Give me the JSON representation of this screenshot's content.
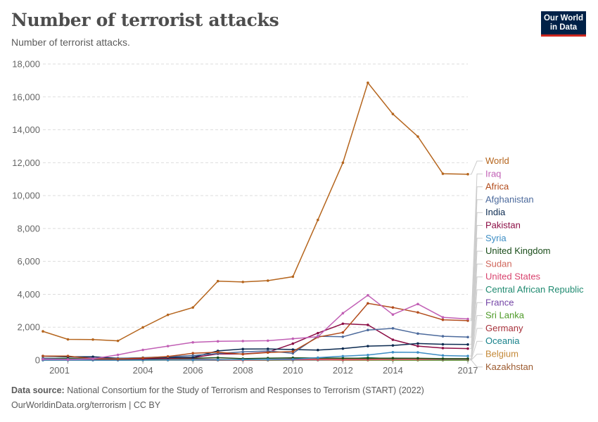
{
  "header": {
    "title": "Number of terrorist attacks",
    "subtitle": "Number of terrorist attacks."
  },
  "logo": {
    "line1": "Our World",
    "line2": "in Data"
  },
  "footer": {
    "source_label": "Data source:",
    "source_text": "National Consortium for the Study of Terrorism and Responses to Terrorism (START) (2022)",
    "link_text": "OurWorldinData.org/terrorism | CC BY"
  },
  "chart_data": {
    "type": "line",
    "title": "Number of terrorist attacks",
    "xlabel": "",
    "ylabel": "",
    "xlim": [
      2001,
      2017
    ],
    "ylim": [
      0,
      18000
    ],
    "yticks": [
      0,
      2000,
      4000,
      6000,
      8000,
      10000,
      12000,
      14000,
      16000,
      18000
    ],
    "ytick_labels": [
      "0",
      "2,000",
      "4,000",
      "6,000",
      "8,000",
      "10,000",
      "12,000",
      "14,000",
      "16,000",
      "18,000"
    ],
    "xticks": [
      2001,
      2004,
      2006,
      2008,
      2010,
      2012,
      2014,
      2017
    ],
    "xtick_labels": [
      "2001",
      "2004",
      "2006",
      "2008",
      "2010",
      "2012",
      "2014",
      "2017"
    ],
    "grid": "horizontal dashed",
    "legend": "right, labels at line ends",
    "x": [
      2000,
      2001,
      2002,
      2003,
      2004,
      2005,
      2006,
      2007,
      2008,
      2009,
      2010,
      2011,
      2012,
      2013,
      2014,
      2015,
      2016,
      2017
    ],
    "series": [
      {
        "name": "World",
        "color": "#b5651d",
        "values": [
          1750,
          1260,
          1250,
          1170,
          1990,
          2750,
          3200,
          4800,
          4750,
          4830,
          5070,
          8520,
          12000,
          16860,
          14960,
          13590,
          11330,
          11300
        ]
      },
      {
        "name": "Iraq",
        "color": "#c15fb5",
        "values": [
          50,
          30,
          80,
          320,
          620,
          850,
          1080,
          1140,
          1160,
          1180,
          1300,
          1420,
          2850,
          3940,
          2770,
          3410,
          2600,
          2500
        ]
      },
      {
        "name": "Africa",
        "color": "#b24b1b",
        "values": [
          250,
          250,
          80,
          70,
          130,
          220,
          420,
          480,
          360,
          460,
          520,
          1400,
          1680,
          3450,
          3200,
          2900,
          2450,
          2400
        ]
      },
      {
        "name": "Afghanistan",
        "color": "#4c6a9c",
        "values": [
          100,
          50,
          70,
          100,
          150,
          200,
          280,
          400,
          500,
          560,
          410,
          1450,
          1420,
          1830,
          1930,
          1610,
          1450,
          1400
        ]
      },
      {
        "name": "India",
        "color": "#0b2a50",
        "values": [
          250,
          200,
          200,
          110,
          140,
          160,
          170,
          560,
          670,
          680,
          640,
          610,
          700,
          850,
          890,
          1010,
          960,
          950
        ]
      },
      {
        "name": "Pakistan",
        "color": "#8c0e45",
        "values": [
          60,
          50,
          60,
          60,
          80,
          120,
          150,
          380,
          370,
          480,
          1000,
          1640,
          2210,
          2140,
          1240,
          850,
          730,
          700
        ]
      },
      {
        "name": "Syria",
        "color": "#3c8dc4",
        "values": [
          0,
          0,
          0,
          0,
          10,
          10,
          10,
          20,
          30,
          40,
          50,
          150,
          240,
          310,
          480,
          470,
          280,
          250
        ]
      },
      {
        "name": "United Kingdom",
        "color": "#1a4d1a",
        "values": [
          110,
          80,
          60,
          50,
          60,
          100,
          110,
          150,
          90,
          120,
          140,
          130,
          120,
          110,
          120,
          110,
          90,
          90
        ]
      },
      {
        "name": "Sudan",
        "color": "#d0665b",
        "values": [
          30,
          20,
          40,
          30,
          60,
          60,
          40,
          40,
          30,
          40,
          80,
          80,
          60,
          70,
          30,
          40,
          50,
          50
        ]
      },
      {
        "name": "United States",
        "color": "#d9446f",
        "values": [
          30,
          40,
          30,
          10,
          20,
          20,
          20,
          20,
          10,
          20,
          20,
          20,
          20,
          30,
          40,
          70,
          60,
          60
        ]
      },
      {
        "name": "Central African Republic",
        "color": "#1f8a70",
        "values": [
          0,
          0,
          0,
          0,
          0,
          10,
          10,
          20,
          20,
          30,
          10,
          10,
          60,
          150,
          80,
          50,
          30,
          30
        ]
      },
      {
        "name": "France",
        "color": "#7445a6",
        "values": [
          240,
          200,
          120,
          90,
          90,
          80,
          60,
          40,
          10,
          20,
          50,
          50,
          60,
          40,
          40,
          40,
          40,
          40
        ]
      },
      {
        "name": "Sri Lanka",
        "color": "#4e9a28",
        "values": [
          100,
          110,
          80,
          30,
          20,
          50,
          60,
          20,
          10,
          0,
          0,
          0,
          10,
          10,
          0,
          0,
          0,
          0
        ]
      },
      {
        "name": "Germany",
        "color": "#a6303a",
        "values": [
          20,
          20,
          20,
          10,
          10,
          10,
          10,
          0,
          10,
          30,
          20,
          20,
          20,
          80,
          60,
          90,
          80,
          80
        ]
      },
      {
        "name": "Oceania",
        "color": "#17818a",
        "values": [
          20,
          20,
          20,
          20,
          10,
          10,
          10,
          10,
          10,
          10,
          10,
          10,
          10,
          20,
          20,
          30,
          20,
          20
        ]
      },
      {
        "name": "Belgium",
        "color": "#c48a3a",
        "values": [
          0,
          0,
          0,
          0,
          0,
          0,
          0,
          0,
          0,
          0,
          10,
          10,
          0,
          0,
          20,
          20,
          10,
          10
        ]
      },
      {
        "name": "Kazakhstan",
        "color": "#9c5b30",
        "values": [
          0,
          0,
          0,
          0,
          0,
          0,
          0,
          0,
          0,
          0,
          10,
          20,
          0,
          0,
          0,
          0,
          0,
          0
        ]
      }
    ]
  }
}
